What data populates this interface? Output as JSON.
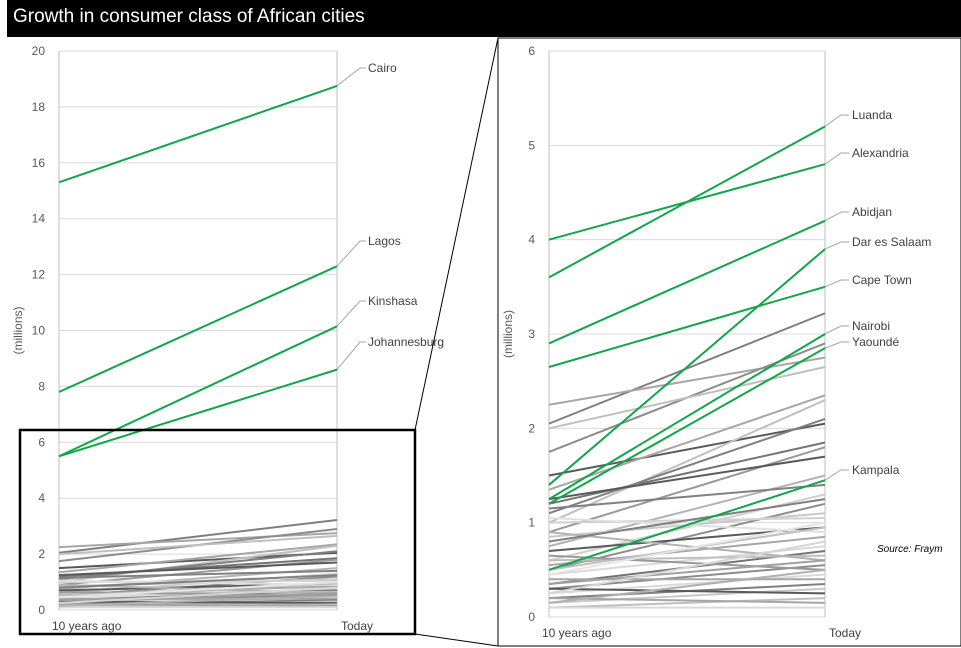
{
  "title": "Growth in consumer class of African cities",
  "source": "Source: Fraym",
  "colors": {
    "highlight": "#12a64a",
    "grid": "#d9d9d9",
    "axis": "#bfbfbf"
  },
  "chart_data": [
    {
      "type": "line",
      "panel": "full",
      "x": [
        "10 years ago",
        "Today"
      ],
      "ylabel": "(millions)",
      "ylim": [
        0,
        20
      ],
      "yticks": [
        0,
        2,
        4,
        6,
        8,
        10,
        12,
        14,
        16,
        18,
        20
      ],
      "grid": true,
      "series": [
        {
          "name": "Cairo",
          "values": [
            15.3,
            18.75
          ]
        },
        {
          "name": "Lagos",
          "values": [
            7.8,
            12.3
          ]
        },
        {
          "name": "Kinshasa",
          "values": [
            5.5,
            10.15
          ]
        },
        {
          "name": "Johannesburg",
          "values": [
            5.5,
            8.6
          ]
        }
      ]
    },
    {
      "type": "line",
      "panel": "zoom",
      "x": [
        "10 years ago",
        "Today"
      ],
      "ylabel": "(millions)",
      "ylim": [
        0,
        6
      ],
      "yticks": [
        0,
        1,
        2,
        3,
        4,
        5,
        6
      ],
      "grid": true,
      "series": [
        {
          "name": "Luanda",
          "values": [
            3.6,
            5.2
          ]
        },
        {
          "name": "Alexandria",
          "values": [
            4.0,
            4.8
          ]
        },
        {
          "name": "Abidjan",
          "values": [
            2.9,
            4.2
          ]
        },
        {
          "name": "Dar es Salaam",
          "values": [
            1.4,
            3.9
          ]
        },
        {
          "name": "Cape Town",
          "values": [
            2.65,
            3.5
          ]
        },
        {
          "name": "Nairobi",
          "values": [
            1.25,
            3.0
          ]
        },
        {
          "name": "Yaoundé",
          "values": [
            1.2,
            2.85
          ]
        },
        {
          "name": "Kampala",
          "values": [
            0.5,
            1.45
          ]
        }
      ],
      "other_cities": [
        [
          2.05,
          3.22
        ],
        [
          2.25,
          2.75
        ],
        [
          1.75,
          2.9
        ],
        [
          2.0,
          2.65
        ],
        [
          1.5,
          2.05
        ],
        [
          1.35,
          2.35
        ],
        [
          1.2,
          1.85
        ],
        [
          1.0,
          2.3
        ],
        [
          1.1,
          2.1
        ],
        [
          0.9,
          1.8
        ],
        [
          1.25,
          1.7
        ],
        [
          0.75,
          1.5
        ],
        [
          1.15,
          1.4
        ],
        [
          0.6,
          1.3
        ],
        [
          0.5,
          1.2
        ],
        [
          0.85,
          1.1
        ],
        [
          0.7,
          0.95
        ],
        [
          0.55,
          0.85
        ],
        [
          0.45,
          0.75
        ],
        [
          0.35,
          0.7
        ],
        [
          0.6,
          0.65
        ],
        [
          0.3,
          0.55
        ],
        [
          0.25,
          0.45
        ],
        [
          0.4,
          0.4
        ],
        [
          0.2,
          0.35
        ],
        [
          0.15,
          0.3
        ],
        [
          0.3,
          0.25
        ],
        [
          0.1,
          0.2
        ],
        [
          0.2,
          0.15
        ],
        [
          0.1,
          0.1
        ],
        [
          1.0,
          1.05
        ],
        [
          0.9,
          0.6
        ],
        [
          0.65,
          0.5
        ],
        [
          1.05,
          0.9
        ],
        [
          0.8,
          1.25
        ],
        [
          0.5,
          0.95
        ],
        [
          0.35,
          0.6
        ],
        [
          0.25,
          0.8
        ],
        [
          0.15,
          0.5
        ],
        [
          0.45,
          1.0
        ]
      ],
      "other_shades": [
        "#7f7f7f",
        "#a6a6a6",
        "#8c8c8c",
        "#bfbfbf",
        "#595959",
        "#a6a6a6",
        "#737373",
        "#bfbfbf",
        "#7f7f7f",
        "#999999",
        "#595959",
        "#b3b3b3",
        "#808080",
        "#d0d0d0",
        "#8c8c8c",
        "#c8c8c8",
        "#595959",
        "#a6a6a6",
        "#d9d9d9",
        "#737373",
        "#bfbfbf",
        "#8c8c8c",
        "#d9d9d9",
        "#a6a6a6",
        "#7f7f7f",
        "#c8c8c8",
        "#595959",
        "#bfbfbf",
        "#a6a6a6",
        "#d9d9d9",
        "#d0d0d0",
        "#b3b3b3",
        "#999999",
        "#e0e0e0",
        "#808080",
        "#c0c0c0",
        "#a0a0a0",
        "#d5d5d5",
        "#b0b0b0",
        "#e5e5e5"
      ]
    }
  ]
}
